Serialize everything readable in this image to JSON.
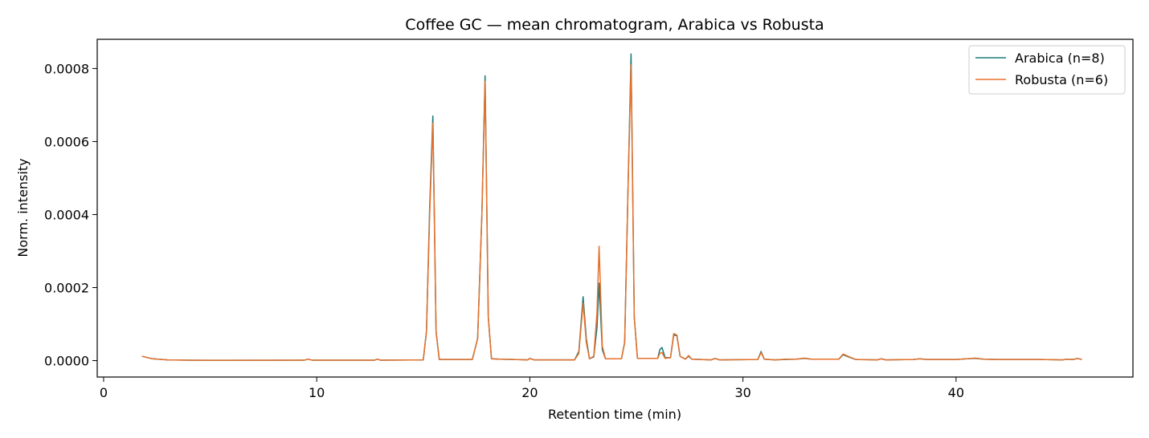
{
  "chart_data": {
    "type": "line",
    "title": "Coffee GC — mean chromatogram, Arabica vs Robusta",
    "xlabel": "Retention time (min)",
    "ylabel": "Norm. intensity",
    "xlim": [
      -0.3,
      48.3
    ],
    "ylim": [
      -4.5e-05,
      0.00088
    ],
    "xticks": [
      0,
      10,
      20,
      30,
      40
    ],
    "xtick_labels": [
      "0",
      "10",
      "20",
      "30",
      "40"
    ],
    "yticks": [
      0,
      0.0002,
      0.0004,
      0.0006,
      0.0008
    ],
    "ytick_labels": [
      "0.0000",
      "0.0002",
      "0.0004",
      "0.0006",
      "0.0008"
    ],
    "grid": false,
    "legend_position": "top-right",
    "series": [
      {
        "name": "Arabica (n=8)",
        "color": "#1a7a7a",
        "points": [
          [
            1.8,
            1.2e-05
          ],
          [
            2.0,
            9e-06
          ],
          [
            2.3,
            5e-06
          ],
          [
            3.0,
            2e-06
          ],
          [
            4.0,
            1e-06
          ],
          [
            6.0,
            8e-07
          ],
          [
            9.4,
            1e-06
          ],
          [
            9.6,
            4e-06
          ],
          [
            9.8,
            1e-06
          ],
          [
            12.7,
            1e-06
          ],
          [
            12.85,
            4e-06
          ],
          [
            13.0,
            1e-06
          ],
          [
            15.0,
            2e-06
          ],
          [
            15.15,
            8e-05
          ],
          [
            15.3,
            0.00042
          ],
          [
            15.45,
            0.00067
          ],
          [
            15.6,
            8e-05
          ],
          [
            15.75,
            3e-06
          ],
          [
            17.3,
            3e-06
          ],
          [
            17.55,
            6e-05
          ],
          [
            17.75,
            0.0004
          ],
          [
            17.9,
            0.00078
          ],
          [
            18.05,
            0.00012
          ],
          [
            18.2,
            5e-06
          ],
          [
            18.6,
            4e-06
          ],
          [
            19.9,
            2e-06
          ],
          [
            20.0,
            6e-06
          ],
          [
            20.2,
            2e-06
          ],
          [
            22.1,
            2e-06
          ],
          [
            22.3,
            2.5e-05
          ],
          [
            22.5,
            0.000175
          ],
          [
            22.65,
            6e-05
          ],
          [
            22.8,
            5e-06
          ],
          [
            23.0,
            1e-05
          ],
          [
            23.15,
            9e-05
          ],
          [
            23.25,
            0.000212
          ],
          [
            23.4,
            3e-05
          ],
          [
            23.55,
            5e-06
          ],
          [
            24.3,
            5e-06
          ],
          [
            24.45,
            5e-05
          ],
          [
            24.6,
            0.00045
          ],
          [
            24.75,
            0.00084
          ],
          [
            24.9,
            0.00012
          ],
          [
            25.05,
            6e-06
          ],
          [
            26.0,
            6e-06
          ],
          [
            26.1,
            3e-05
          ],
          [
            26.2,
            3.6e-05
          ],
          [
            26.35,
            8e-06
          ],
          [
            26.6,
            8e-06
          ],
          [
            26.75,
            7e-05
          ],
          [
            26.9,
            6.8e-05
          ],
          [
            27.05,
            1.2e-05
          ],
          [
            27.3,
            4e-06
          ],
          [
            27.45,
            1.2e-05
          ],
          [
            27.6,
            4e-06
          ],
          [
            28.5,
            2e-06
          ],
          [
            28.7,
            6e-06
          ],
          [
            28.9,
            2e-06
          ],
          [
            30.7,
            3e-06
          ],
          [
            30.85,
            2.5e-05
          ],
          [
            31.0,
            4e-06
          ],
          [
            31.5,
            2e-06
          ],
          [
            32.0,
            3e-06
          ],
          [
            32.5,
            4e-06
          ],
          [
            32.9,
            6e-06
          ],
          [
            33.2,
            4e-06
          ],
          [
            34.5,
            4e-06
          ],
          [
            34.7,
            1.6e-05
          ],
          [
            35.0,
            9e-06
          ],
          [
            35.3,
            3e-06
          ],
          [
            36.3,
            2e-06
          ],
          [
            36.5,
            5e-06
          ],
          [
            36.7,
            2e-06
          ],
          [
            38.0,
            3e-06
          ],
          [
            38.3,
            5e-06
          ],
          [
            38.6,
            3e-06
          ],
          [
            40.0,
            3e-06
          ],
          [
            40.5,
            5e-06
          ],
          [
            40.9,
            6e-06
          ],
          [
            41.3,
            4e-06
          ],
          [
            42.0,
            3e-06
          ],
          [
            44.0,
            3e-06
          ],
          [
            45.0,
            2e-06
          ],
          [
            45.2,
            4e-06
          ],
          [
            45.5,
            3e-06
          ],
          [
            45.7,
            6e-06
          ],
          [
            45.9,
            3e-06
          ]
        ]
      },
      {
        "name": "Robusta (n=6)",
        "color": "#e8702a",
        "points": [
          [
            1.8,
            1.2e-05
          ],
          [
            2.0,
            9e-06
          ],
          [
            2.3,
            5e-06
          ],
          [
            3.0,
            2e-06
          ],
          [
            4.0,
            1e-06
          ],
          [
            6.0,
            8e-07
          ],
          [
            9.4,
            1e-06
          ],
          [
            9.6,
            4e-06
          ],
          [
            9.8,
            1e-06
          ],
          [
            12.7,
            1e-06
          ],
          [
            12.85,
            4e-06
          ],
          [
            13.0,
            1e-06
          ],
          [
            15.0,
            2e-06
          ],
          [
            15.15,
            8e-05
          ],
          [
            15.3,
            0.0004
          ],
          [
            15.45,
            0.00065
          ],
          [
            15.6,
            8e-05
          ],
          [
            15.75,
            3e-06
          ],
          [
            17.3,
            3e-06
          ],
          [
            17.55,
            6e-05
          ],
          [
            17.75,
            0.0004
          ],
          [
            17.9,
            0.000765
          ],
          [
            18.05,
            0.00012
          ],
          [
            18.2,
            5e-06
          ],
          [
            18.6,
            4e-06
          ],
          [
            19.9,
            2e-06
          ],
          [
            20.0,
            6e-06
          ],
          [
            20.2,
            2e-06
          ],
          [
            22.1,
            2e-06
          ],
          [
            22.3,
            2e-05
          ],
          [
            22.5,
            0.000158
          ],
          [
            22.65,
            5e-05
          ],
          [
            22.8,
            5e-06
          ],
          [
            23.0,
            1.2e-05
          ],
          [
            23.15,
            0.00013
          ],
          [
            23.25,
            0.000313
          ],
          [
            23.4,
            4e-05
          ],
          [
            23.55,
            5e-06
          ],
          [
            24.3,
            5e-06
          ],
          [
            24.45,
            5e-05
          ],
          [
            24.6,
            0.00045
          ],
          [
            24.75,
            0.00081
          ],
          [
            24.9,
            0.00012
          ],
          [
            25.05,
            6e-06
          ],
          [
            26.0,
            6e-06
          ],
          [
            26.1,
            2e-05
          ],
          [
            26.2,
            2.2e-05
          ],
          [
            26.35,
            6e-06
          ],
          [
            26.6,
            8e-06
          ],
          [
            26.75,
            7.4e-05
          ],
          [
            26.9,
            7e-05
          ],
          [
            27.05,
            1.2e-05
          ],
          [
            27.3,
            4e-06
          ],
          [
            27.45,
            1.4e-05
          ],
          [
            27.6,
            4e-06
          ],
          [
            28.5,
            2e-06
          ],
          [
            28.7,
            6e-06
          ],
          [
            28.9,
            2e-06
          ],
          [
            30.7,
            3e-06
          ],
          [
            30.85,
            2.2e-05
          ],
          [
            31.0,
            4e-06
          ],
          [
            31.5,
            2e-06
          ],
          [
            32.0,
            4e-06
          ],
          [
            32.5,
            4e-06
          ],
          [
            32.9,
            7e-06
          ],
          [
            33.2,
            4e-06
          ],
          [
            34.5,
            4e-06
          ],
          [
            34.7,
            1.8e-05
          ],
          [
            35.0,
            1e-05
          ],
          [
            35.3,
            3e-06
          ],
          [
            36.3,
            2e-06
          ],
          [
            36.5,
            5e-06
          ],
          [
            36.7,
            2e-06
          ],
          [
            38.0,
            3e-06
          ],
          [
            38.3,
            5e-06
          ],
          [
            38.6,
            3e-06
          ],
          [
            40.0,
            3e-06
          ],
          [
            40.5,
            5e-06
          ],
          [
            40.9,
            7e-06
          ],
          [
            41.3,
            4e-06
          ],
          [
            42.0,
            3e-06
          ],
          [
            44.0,
            3e-06
          ],
          [
            45.0,
            2e-06
          ],
          [
            45.2,
            4e-06
          ],
          [
            45.5,
            3e-06
          ],
          [
            45.7,
            6e-06
          ],
          [
            45.9,
            3e-06
          ]
        ]
      }
    ]
  }
}
